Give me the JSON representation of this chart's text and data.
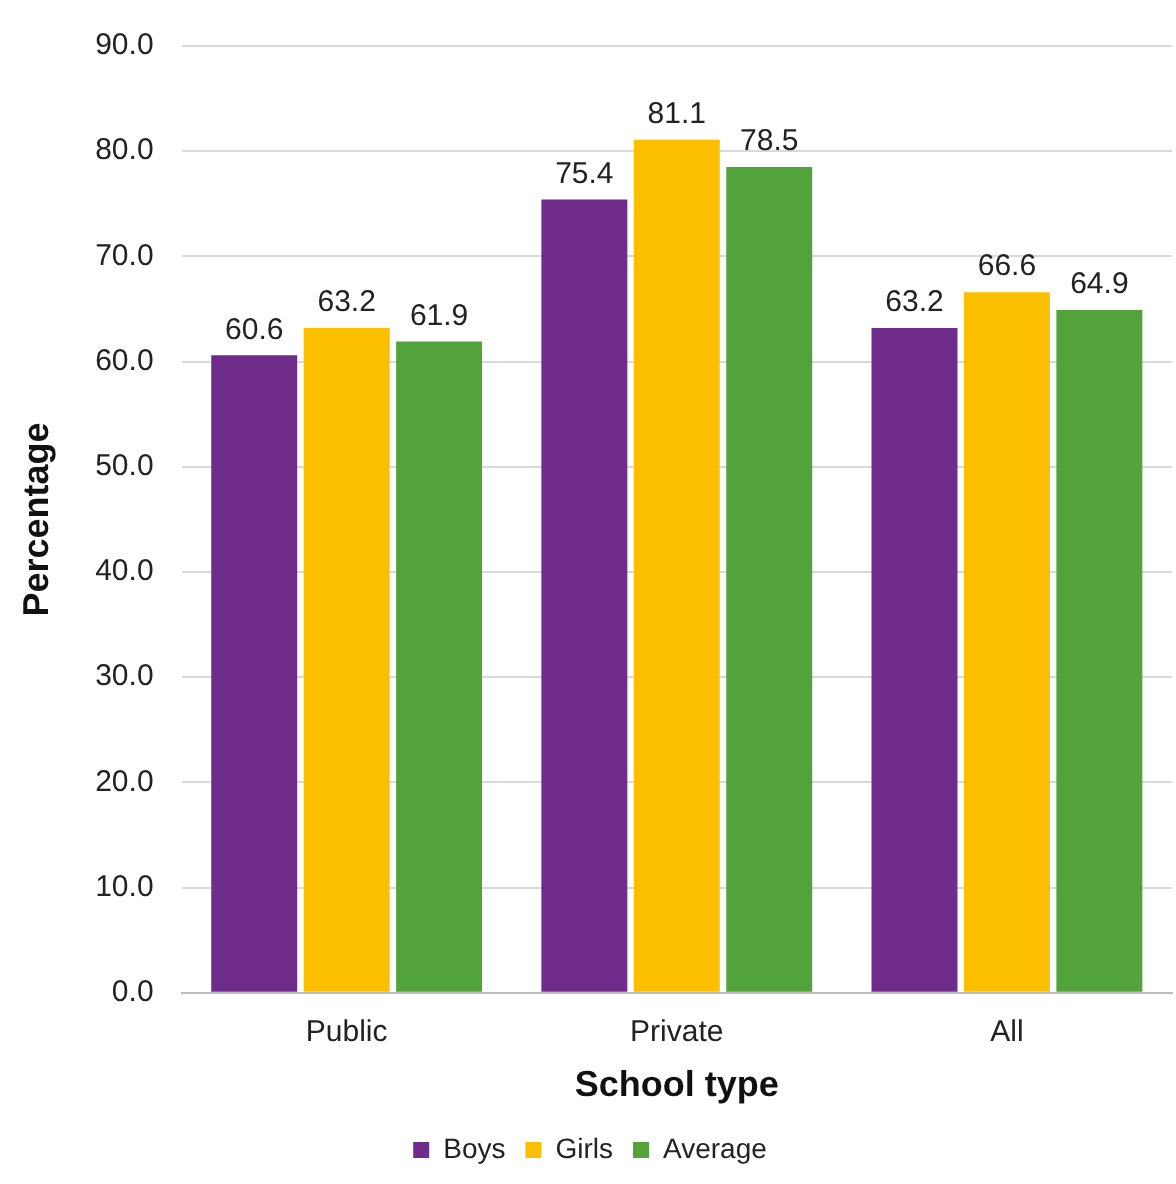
{
  "chart_data": {
    "type": "bar",
    "xlabel": "School type",
    "ylabel": "Percentage",
    "categories": [
      "Public",
      "Private",
      "All"
    ],
    "series": [
      {
        "name": "Boys",
        "color": "#6f2c8a",
        "values": [
          60.6,
          75.4,
          63.2
        ]
      },
      {
        "name": "Girls",
        "color": "#fbbf00",
        "values": [
          63.2,
          81.1,
          66.6
        ]
      },
      {
        "name": "Average",
        "color": "#52a33a",
        "values": [
          61.9,
          78.5,
          64.9
        ]
      }
    ],
    "ylim": [
      0,
      90
    ],
    "yticks": [
      {
        "value": 0,
        "label": "0.0"
      },
      {
        "value": 10,
        "label": "10.0"
      },
      {
        "value": 20,
        "label": "20.0"
      },
      {
        "value": 30,
        "label": "30.0"
      },
      {
        "value": 40,
        "label": "40.0"
      },
      {
        "value": 50,
        "label": "50.0"
      },
      {
        "value": 60,
        "label": "60.0"
      },
      {
        "value": 70,
        "label": "70.0"
      },
      {
        "value": 80,
        "label": "80.0"
      },
      {
        "value": 90,
        "label": "90.0"
      }
    ],
    "grid": "y",
    "legend": "bottom",
    "data_labels": true
  }
}
